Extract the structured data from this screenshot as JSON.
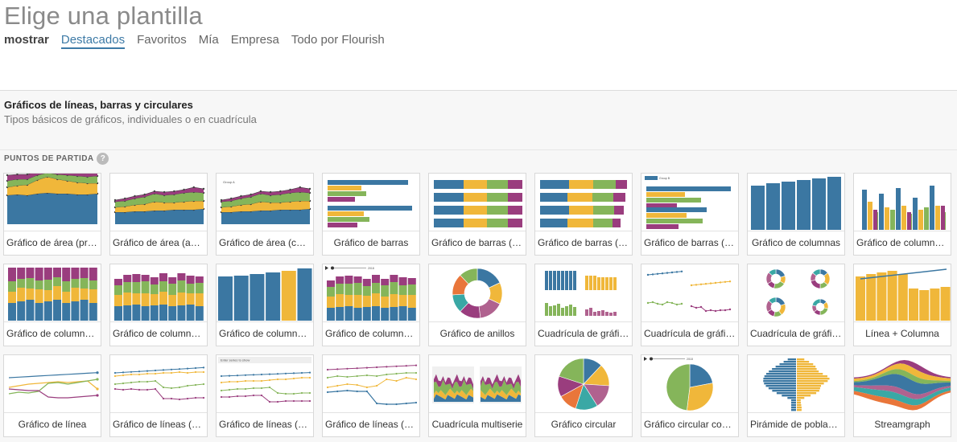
{
  "page": {
    "title": "Elige una plantilla"
  },
  "filters": {
    "label": "mostrar",
    "tabs": [
      {
        "label": "Destacados",
        "active": true
      },
      {
        "label": "Favoritos",
        "active": false
      },
      {
        "label": "Mía",
        "active": false
      },
      {
        "label": "Empresa",
        "active": false
      },
      {
        "label": "Todo por Flourish",
        "active": false
      }
    ]
  },
  "section": {
    "title": "Gráficos de líneas, barras y circulares",
    "subtitle": "Tipos básicos de gráficos, individuales o en cuadrícula",
    "start_label": "PUNTOS DE PARTIDA",
    "help_glyph": "?"
  },
  "colors": {
    "blue": "#3b77a2",
    "yellow": "#f0b73a",
    "green": "#85b55a",
    "purple": "#9a3d7e",
    "pink": "#b0628f",
    "teal": "#3aa8a5",
    "orange": "#e9763a"
  },
  "templates": [
    {
      "label": "Gráfico de área (pro...",
      "align": "left",
      "thumb": "area-stacked-prop",
      "name": "template-area-proportional"
    },
    {
      "label": "Gráfico de área (apil...",
      "align": "left",
      "thumb": "area-stacked",
      "name": "template-area-stacked"
    },
    {
      "label": "Gráfico de área (con ...",
      "align": "left",
      "thumb": "area-filter",
      "name": "template-area-filter",
      "thumb_text": "Group A"
    },
    {
      "label": "Gráfico de barras",
      "align": "center",
      "thumb": "bar-grouped",
      "name": "template-bar"
    },
    {
      "label": "Gráfico de barras (pr...",
      "align": "left",
      "thumb": "bar-stacked-prop",
      "name": "template-bar-proportional"
    },
    {
      "label": "Gráfico de barras (a...",
      "align": "left",
      "thumb": "bar-stacked",
      "name": "template-bar-stacked"
    },
    {
      "label": "Gráfico de barras (co...",
      "align": "left",
      "thumb": "bar-filter",
      "name": "template-bar-filter",
      "thumb_text": "Group A"
    },
    {
      "label": "Gráfico de columnas",
      "align": "center",
      "thumb": "column-single",
      "name": "template-column"
    },
    {
      "label": "Gráfico de columnas...",
      "align": "left",
      "thumb": "column-grouped",
      "name": "template-column-grouped"
    },
    {
      "label": "Gráfico de columnas...",
      "align": "left",
      "thumb": "column-stacked-prop",
      "name": "template-column-proportional"
    },
    {
      "label": "Gráfico de columnas...",
      "align": "left",
      "thumb": "column-stacked",
      "name": "template-column-stacked"
    },
    {
      "label": "Gráfico de columnas...",
      "align": "left",
      "thumb": "column-highlight",
      "name": "template-column-highlight"
    },
    {
      "label": "Gráfico de columnas...",
      "align": "left",
      "thumb": "column-timeline",
      "name": "template-column-timeline",
      "thumb_text": "2018"
    },
    {
      "label": "Gráfico de anillos",
      "align": "center",
      "thumb": "donut",
      "name": "template-donut"
    },
    {
      "label": "Cuadrícula de gráfic...",
      "align": "left",
      "thumb": "grid-columns",
      "name": "template-grid-columns"
    },
    {
      "label": "Cuadrícula de gráfic...",
      "align": "left",
      "thumb": "grid-lines",
      "name": "template-grid-lines"
    },
    {
      "label": "Cuadrícula de gráfic...",
      "align": "left",
      "thumb": "grid-donuts",
      "name": "template-grid-donuts"
    },
    {
      "label": "Línea + Columna",
      "align": "center",
      "thumb": "line-column",
      "name": "template-line-column"
    },
    {
      "label": "Gráfico de línea",
      "align": "center",
      "thumb": "line",
      "name": "template-line"
    },
    {
      "label": "Gráfico de líneas (pr...",
      "align": "left",
      "thumb": "line-prop",
      "name": "template-line-proportional"
    },
    {
      "label": "Gráfico de líneas (se ...",
      "align": "left",
      "thumb": "line-select",
      "name": "template-line-select",
      "thumb_text": "Enter series to show"
    },
    {
      "label": "Gráfico de líneas (co...",
      "align": "left",
      "thumb": "line-filter",
      "name": "template-line-filter"
    },
    {
      "label": "Cuadrícula multiserie",
      "align": "center",
      "thumb": "multiseries",
      "name": "template-multiseries-grid"
    },
    {
      "label": "Gráfico circular",
      "align": "center",
      "thumb": "pie",
      "name": "template-pie"
    },
    {
      "label": "Gráfico circular con ...",
      "align": "left",
      "thumb": "pie-timeline",
      "name": "template-pie-timeline",
      "thumb_text": "2018"
    },
    {
      "label": "Pirámide de población",
      "align": "center",
      "thumb": "pyramid",
      "name": "template-population-pyramid"
    },
    {
      "label": "Streamgraph",
      "align": "center",
      "thumb": "streamgraph",
      "name": "template-streamgraph"
    }
  ]
}
